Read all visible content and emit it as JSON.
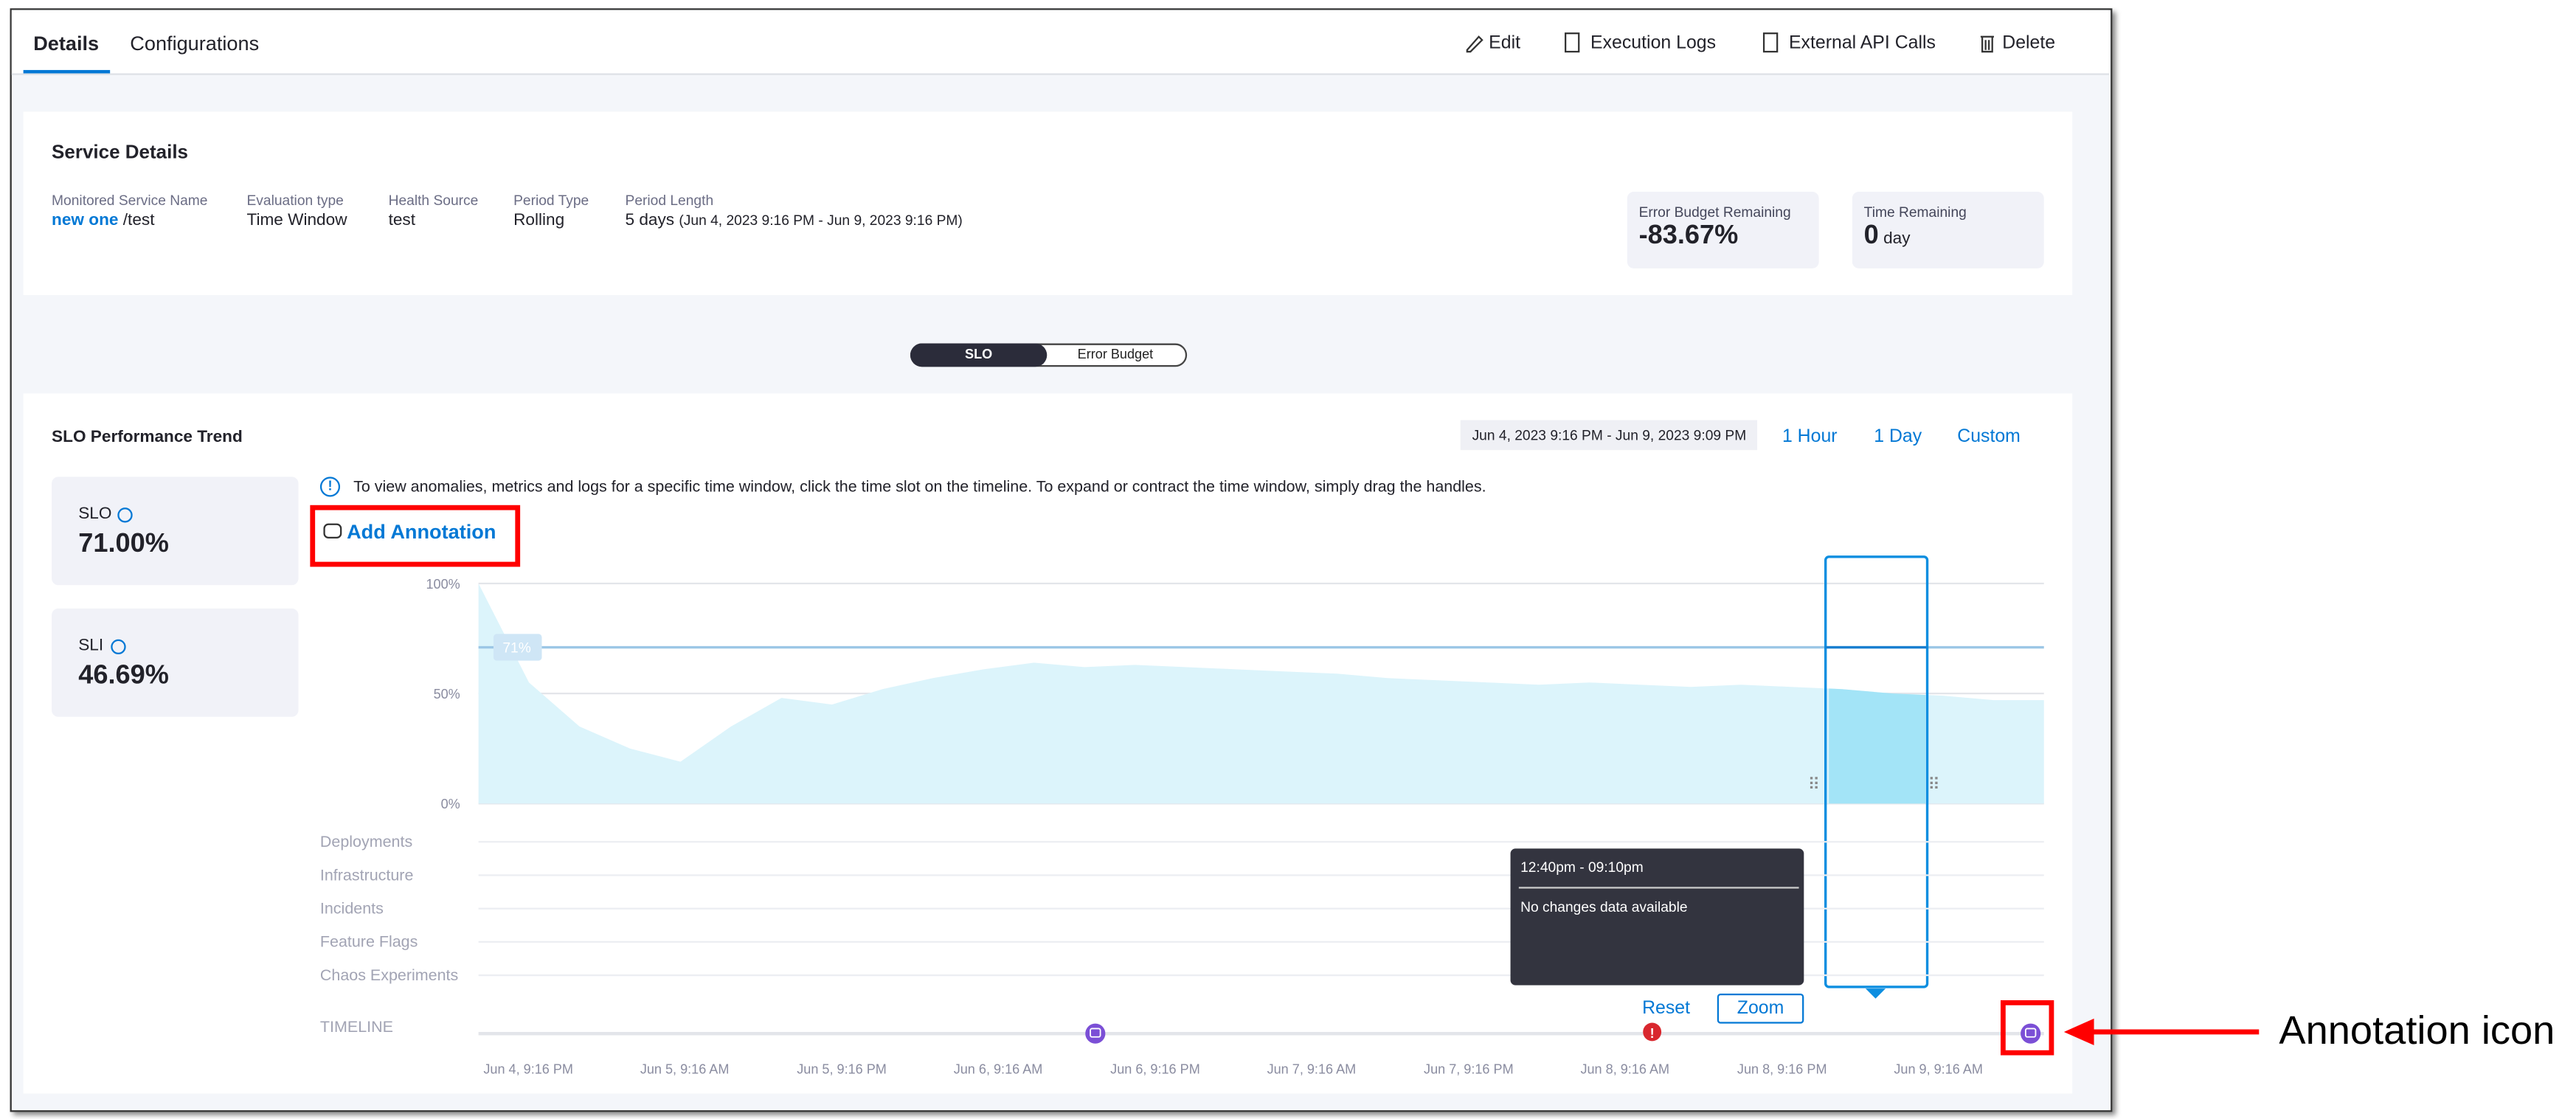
{
  "tabs": [
    "Details",
    "Configurations"
  ],
  "actions": [
    "Edit",
    "Execution Logs",
    "External API Calls",
    "Delete"
  ],
  "service_details": {
    "title": "Service Details",
    "fields": [
      {
        "label": "Monitored Service Name",
        "link": "new one",
        "value": "/test"
      },
      {
        "label": "Evaluation type",
        "value": "Time Window"
      },
      {
        "label": "Health Source",
        "value": "test"
      },
      {
        "label": "Period Type",
        "value": "Rolling"
      },
      {
        "label": "Period Length",
        "value": "5 days",
        "detail": "(Jun 4, 2023 9:16 PM - Jun 9, 2023 9:16 PM)"
      }
    ],
    "error_budget": {
      "label": "Error Budget Remaining",
      "value": "-83.67%"
    },
    "time_remaining": {
      "label": "Time Remaining",
      "value": "0",
      "unit": "day"
    }
  },
  "toggle": [
    "SLO",
    "Error Budget"
  ],
  "trend": {
    "title": "SLO Performance Trend",
    "date_range": "Jun 4, 2023 9:16 PM - Jun 9, 2023 9:09 PM",
    "ranges": [
      "1 Hour",
      "1 Day",
      "Custom"
    ],
    "info": "To view anomalies, metrics and logs for a specific time window, click the time slot on the timeline. To expand or contract the time window, simply drag the handles.",
    "add_annotation": "Add Annotation",
    "slo": {
      "label": "SLO",
      "value": "71.00%"
    },
    "sli": {
      "label": "SLI",
      "value": "46.69%"
    },
    "rows": [
      "Deployments",
      "Infrastructure",
      "Incidents",
      "Feature Flags",
      "Chaos Experiments"
    ],
    "timeline": "TIMELINE",
    "tooltip": {
      "time": "12:40pm - 09:10pm",
      "text": "No changes data available"
    },
    "reset": "Reset",
    "zoom": "Zoom"
  },
  "chart_data": {
    "type": "area",
    "color": "#dcf4fb",
    "selected_color": "#a3e4f7",
    "ylim": [
      0,
      100
    ],
    "yticks": [
      {
        "value": 0,
        "label": "0%"
      },
      {
        "value": 50,
        "label": "50%"
      },
      {
        "value": 100,
        "label": "100%"
      }
    ],
    "target": {
      "value": 71,
      "label": "71%"
    },
    "values": [
      100,
      55,
      35,
      25,
      19,
      35,
      48,
      45,
      52,
      57,
      61,
      64,
      62,
      63,
      62,
      61,
      60,
      59,
      57,
      56,
      55,
      54,
      55,
      54,
      53,
      54,
      53,
      52,
      50,
      49,
      47,
      47
    ],
    "x_labels": [
      "Jun 4, 9:16 PM",
      "Jun 5, 9:16 AM",
      "Jun 5, 9:16 PM",
      "Jun 6, 9:16 AM",
      "Jun 6, 9:16 PM",
      "Jun 7, 9:16 AM",
      "Jun 7, 9:16 PM",
      "Jun 8, 9:16 AM",
      "Jun 8, 9:16 PM",
      "Jun 9, 9:16 AM"
    ]
  },
  "callout": "Annotation icon"
}
